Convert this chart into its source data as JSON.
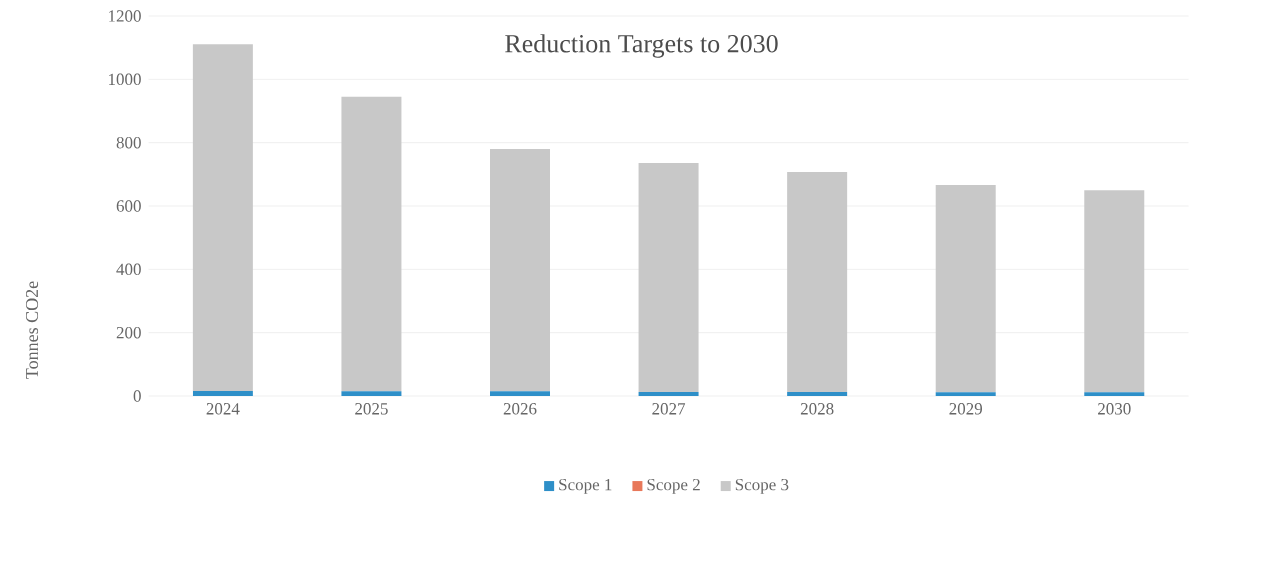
{
  "chart_data": {
    "type": "bar",
    "title": "Reduction Targets to 2030",
    "ylabel": "Tonnes CO2e",
    "categories": [
      "2024",
      "2025",
      "2026",
      "2027",
      "2028",
      "2029",
      "2030"
    ],
    "series": [
      {
        "name": "Scope 1",
        "color": "#2e8fc8",
        "values": [
          16,
          15,
          15,
          13,
          13,
          12,
          12
        ]
      },
      {
        "name": "Scope 2",
        "color": "#e8785a",
        "values": [
          0,
          0,
          0,
          0,
          0,
          0,
          0
        ]
      },
      {
        "name": "Scope 3",
        "color": "#c8c8c8",
        "values": [
          1095,
          930,
          765,
          723,
          694,
          654,
          638
        ]
      }
    ],
    "stacked": true,
    "ylim": [
      0,
      1200
    ],
    "yticks": [
      0,
      200,
      400,
      600,
      800,
      1000,
      1200
    ],
    "grid": "y",
    "legend": "bottom"
  }
}
